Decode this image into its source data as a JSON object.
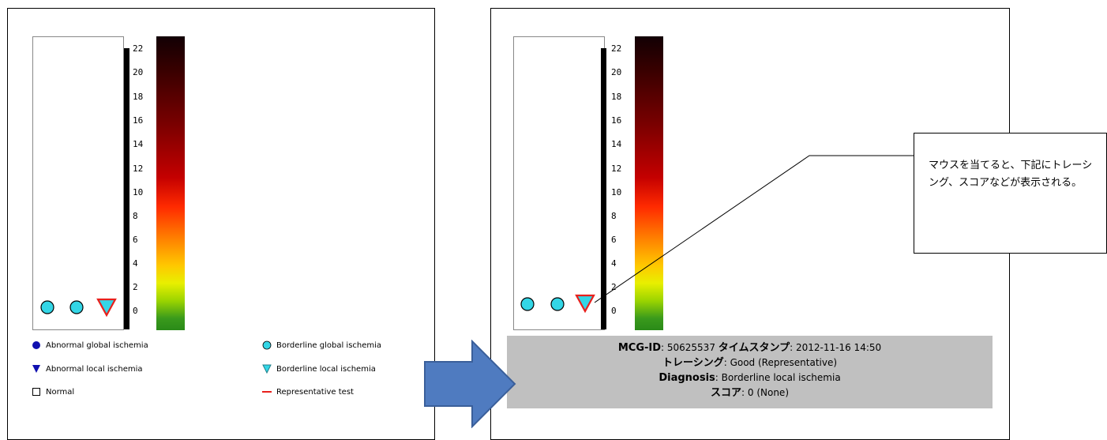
{
  "scale": {
    "ticks": [
      "22",
      "20",
      "18",
      "16",
      "14",
      "12",
      "10",
      "8",
      "6",
      "4",
      "2",
      "0"
    ]
  },
  "legend": {
    "abnormal_global": "Abnormal global ischemia",
    "abnormal_local": "Abnormal local ischemia",
    "normal": "Normal",
    "borderline_global": "Borderline global ischemia",
    "borderline_local": "Borderline local ischemia",
    "representative": "Representative test"
  },
  "info": {
    "mcg_id_label": "MCG-ID",
    "mcg_id_value": "50625537",
    "timestamp_label": "タイムスタンプ",
    "timestamp_value": "2012-11-16 14:50",
    "tracing_label": "トレーシング",
    "tracing_value": "Good (Representative)",
    "diagnosis_label": "Diagnosis",
    "diagnosis_value": "Borderline local ischemia",
    "score_label": "スコア",
    "score_value": "0 (None)"
  },
  "callout": {
    "text": "マウスを当てると、下記にトレーシング、スコアなどが表示される。"
  },
  "colors": {
    "marker_fill": "#33d6e6",
    "marker_stroke": "#000000",
    "triangle_stroke": "#e8201c",
    "abnormal_fill": "#1010b0",
    "representative_line": "#e8201c",
    "info_bg": "#c0c0c0",
    "arrow_fill": "#4f7bc0"
  }
}
